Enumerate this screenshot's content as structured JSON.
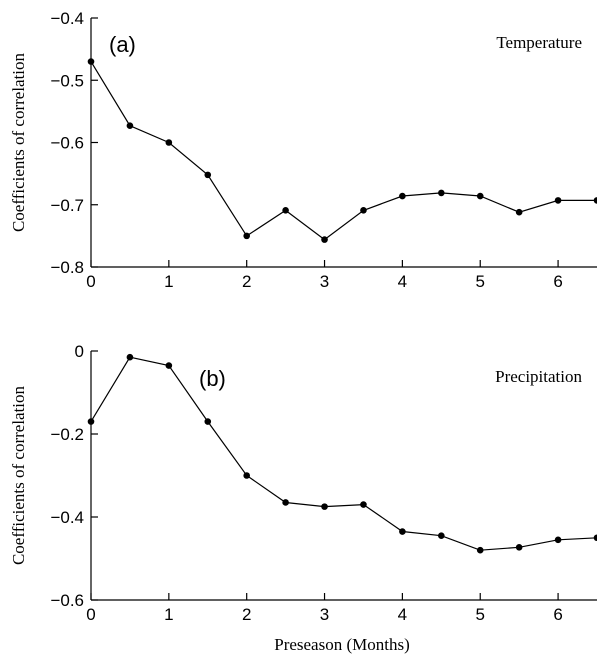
{
  "chart_data": [
    {
      "type": "line",
      "panel_label": "(a)",
      "series_label": "Temperature",
      "ylabel": "Coefficients of correlation",
      "xlabel": "",
      "xlim": [
        0,
        6.5
      ],
      "ylim": [
        -0.8,
        -0.4
      ],
      "xticks": [
        0,
        1,
        2,
        3,
        4,
        5,
        6
      ],
      "xtick_labels": [
        "0",
        "1",
        "2",
        "3",
        "4",
        "5",
        "6"
      ],
      "yticks": [
        -0.8,
        -0.7,
        -0.6,
        -0.5,
        -0.4
      ],
      "ytick_labels": [
        "−0.8",
        "−0.7",
        "−0.6",
        "−0.5",
        "−0.4"
      ],
      "x": [
        0,
        0.5,
        1,
        1.5,
        2,
        2.5,
        3,
        3.5,
        4,
        4.5,
        5,
        5.5,
        6,
        6.5
      ],
      "values": [
        -0.47,
        -0.573,
        -0.6,
        -0.652,
        -0.75,
        -0.709,
        -0.756,
        -0.709,
        -0.686,
        -0.681,
        -0.686,
        -0.712,
        -0.693,
        -0.693
      ]
    },
    {
      "type": "line",
      "panel_label": "(b)",
      "series_label": "Precipitation",
      "ylabel": "Coefficients of correlation",
      "xlabel": "Preseason (Months)",
      "xlim": [
        0,
        6.5
      ],
      "ylim": [
        -0.6,
        0
      ],
      "xticks": [
        0,
        1,
        2,
        3,
        4,
        5,
        6
      ],
      "xtick_labels": [
        "0",
        "1",
        "2",
        "3",
        "4",
        "5",
        "6"
      ],
      "yticks": [
        -0.6,
        -0.4,
        -0.2,
        0
      ],
      "ytick_labels": [
        "−0.6",
        "−0.4",
        "−0.2",
        "0"
      ],
      "x": [
        0,
        0.5,
        1,
        1.5,
        2,
        2.5,
        3,
        3.5,
        4,
        4.5,
        5,
        5.5,
        6,
        6.5
      ],
      "values": [
        -0.17,
        -0.015,
        -0.035,
        -0.17,
        -0.3,
        -0.365,
        -0.375,
        -0.37,
        -0.435,
        -0.445,
        -0.48,
        -0.473,
        -0.455,
        -0.45
      ]
    }
  ]
}
